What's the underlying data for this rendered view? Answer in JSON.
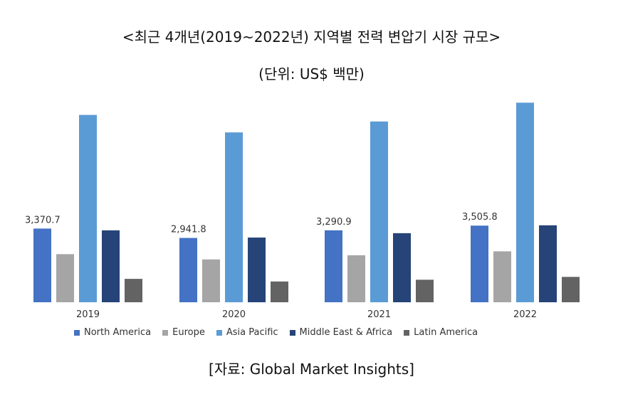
{
  "chart_data": {
    "type": "bar",
    "title": "<최근 4개년(2019~2022년) 지역별 전력 변압기 시장 규모>",
    "subtitle": "(단위: US$ 백만)",
    "categories": [
      "2019",
      "2020",
      "2021",
      "2022"
    ],
    "series": [
      {
        "name": "North America",
        "color": "#4472c4",
        "values": [
          3370.7,
          2941.8,
          3290.9,
          3505.8
        ]
      },
      {
        "name": "Europe",
        "color": "#a5a5a5",
        "values": [
          2200,
          1960,
          2150,
          2330
        ]
      },
      {
        "name": "Asia Pacific",
        "color": "#5b9bd5",
        "values": [
          8570,
          7770,
          8270,
          9130
        ]
      },
      {
        "name": "Middle East & Africa",
        "color": "#264478",
        "values": [
          3290,
          2960,
          3160,
          3520
        ]
      },
      {
        "name": "Latin America",
        "color": "#636363",
        "values": [
          1070,
          950,
          1030,
          1160
        ]
      }
    ],
    "data_labels": [
      "3,370.7",
      "2,941.8",
      "3,290.9",
      "3,505.8"
    ],
    "ylim": [
      0,
      9500
    ],
    "grid": false,
    "legend_position": "bottom",
    "source": "[자료: Global Market Insights]"
  }
}
